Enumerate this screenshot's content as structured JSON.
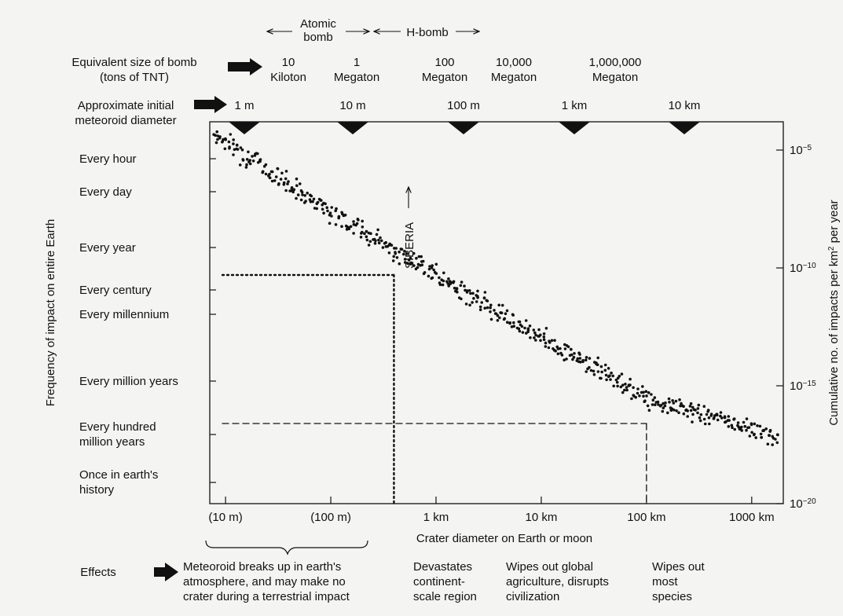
{
  "chart_data": {
    "type": "scatter",
    "bomb_header": {
      "atomic_label_line1": "Atomic",
      "atomic_label_line2": "bomb",
      "hbomb_label": "H-bomb"
    },
    "row_labels": {
      "bomb_size_line1": "Equivalent size of bomb",
      "bomb_size_line2": "(tons of TNT)",
      "diameter_line1": "Approximate initial",
      "diameter_line2": "meteoroid diameter",
      "effects": "Effects"
    },
    "bomb_sizes": [
      {
        "line1": "10",
        "line2": "Kiloton"
      },
      {
        "line1": "1",
        "line2": "Megaton"
      },
      {
        "line1": "100",
        "line2": "Megaton"
      },
      {
        "line1": "10,000",
        "line2": "Megaton"
      },
      {
        "line1": "1,000,000",
        "line2": "Megaton"
      }
    ],
    "meteoroid_diameters": [
      "1 m",
      "10 m",
      "100 m",
      "1 km",
      "10 km"
    ],
    "xlabel": "Crater diameter on Earth or moon",
    "x_ticks": [
      "(10 m)",
      "(100 m)",
      "1 km",
      "10 km",
      "100 km",
      "1000 km"
    ],
    "x_log10_range_m": [
      0.85,
      6.3
    ],
    "ylabel_left": "Frequency of impact on entire Earth",
    "y_ticks_left": [
      {
        "line1": "Every hour",
        "line2": ""
      },
      {
        "line1": "Every day",
        "line2": ""
      },
      {
        "line1": "Every year",
        "line2": ""
      },
      {
        "line1": "Every century",
        "line2": ""
      },
      {
        "line1": "Every millennium",
        "line2": ""
      },
      {
        "line1": "Every million years",
        "line2": ""
      },
      {
        "line1": "Every hundred",
        "line2": "million years"
      },
      {
        "line1": "Once in earth's",
        "line2": "history"
      }
    ],
    "ylabel_right_prefix": "Cumulative no. of impacts per km",
    "ylabel_right_sup": "2",
    "ylabel_right_suffix": " per year",
    "y_ticks_right": [
      {
        "base": "10",
        "exp": "−5"
      },
      {
        "base": "10",
        "exp": "−10"
      },
      {
        "base": "10",
        "exp": "−15"
      },
      {
        "base": "10",
        "exp": "−20"
      }
    ],
    "y_log10_range": [
      -20,
      -3.8
    ],
    "annotation": "SIBERIA",
    "series": [
      {
        "trend_log10_crater_m": [
          0.88,
          2.0,
          3.0,
          4.0,
          5.0,
          6.25
        ],
        "trend_log10_impacts": [
          -4.3,
          -7.6,
          -10.3,
          -12.9,
          -15.5,
          -17.2
        ],
        "scatter": 0.32
      }
    ],
    "reference_lines": [
      {
        "style": "dotted",
        "log10_crater_m": 2.6,
        "log10_impacts": -10.3
      },
      {
        "style": "dashed",
        "log10_crater_m": 5.0,
        "log10_impacts": -16.6
      }
    ],
    "effects": [
      {
        "lines": [
          "Meteoroid breaks up in earth's",
          "atmosphere, and may make no",
          "crater during a terrestrial impact"
        ]
      },
      {
        "lines": [
          "Devastates",
          "continent-",
          "scale region"
        ]
      },
      {
        "lines": [
          "Wipes out global",
          "agriculture, disrupts",
          "civilization"
        ]
      },
      {
        "lines": [
          "Wipes out",
          "most",
          "species"
        ]
      }
    ]
  }
}
